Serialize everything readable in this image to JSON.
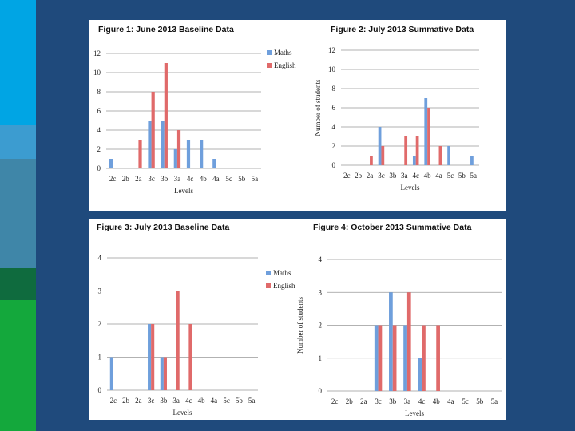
{
  "colors": {
    "background": "#1f4a7c",
    "panel": "#ffffff",
    "maths": "#6f9fdc",
    "english": "#e06a6a",
    "grid": "#999999",
    "stripes": [
      "#00a5e4",
      "#3c9cd0",
      "#3f86a8",
      "#0f6b3e",
      "#14a83c"
    ]
  },
  "chart_data": [
    {
      "type": "bar",
      "title": "Figure 1: June 2013 Baseline Data",
      "xlabel": "Levels",
      "ylabel": "",
      "ylim": [
        0,
        12
      ],
      "yticks": [
        0,
        2,
        4,
        6,
        8,
        10,
        12
      ],
      "grid": true,
      "legend": "right",
      "categories": [
        "2c",
        "2b",
        "2a",
        "3c",
        "3b",
        "3a",
        "4c",
        "4b",
        "4a",
        "5c",
        "5b",
        "5a"
      ],
      "series": [
        {
          "name": "Maths",
          "values": [
            1,
            0,
            0,
            5,
            5,
            2,
            3,
            3,
            1,
            0,
            0,
            0
          ]
        },
        {
          "name": "English",
          "values": [
            0,
            0,
            3,
            8,
            11,
            4,
            0,
            0,
            0,
            0,
            0,
            0
          ]
        }
      ]
    },
    {
      "type": "bar",
      "title": "Figure 2: July 2013 Summative Data",
      "xlabel": "Levels",
      "ylabel": "Number of students",
      "ylim": [
        0,
        12
      ],
      "yticks": [
        0,
        2,
        4,
        6,
        8,
        10,
        12
      ],
      "grid": true,
      "legend": "none",
      "categories": [
        "2c",
        "2b",
        "2a",
        "3c",
        "3b",
        "3a",
        "4c",
        "4b",
        "4a",
        "5c",
        "5b",
        "5a"
      ],
      "series": [
        {
          "name": "Maths",
          "values": [
            0,
            0,
            0,
            4,
            0,
            0,
            1,
            7,
            0,
            2,
            0,
            1
          ]
        },
        {
          "name": "English",
          "values": [
            0,
            0,
            1,
            2,
            0,
            3,
            3,
            6,
            2,
            0,
            0,
            0
          ]
        }
      ]
    },
    {
      "type": "bar",
      "title": "Figure 3: July 2013 Baseline Data",
      "xlabel": "Levels",
      "ylabel": "",
      "ylim": [
        0,
        4
      ],
      "yticks": [
        0,
        1,
        2,
        3,
        4
      ],
      "grid": true,
      "legend": "right",
      "categories": [
        "2c",
        "2b",
        "2a",
        "3c",
        "3b",
        "3a",
        "4c",
        "4b",
        "4a",
        "5c",
        "5b",
        "5a"
      ],
      "series": [
        {
          "name": "Maths",
          "values": [
            1,
            0,
            0,
            2,
            1,
            0,
            0,
            0,
            0,
            0,
            0,
            0
          ]
        },
        {
          "name": "English",
          "values": [
            0,
            0,
            0,
            2,
            1,
            3,
            2,
            0,
            0,
            0,
            0,
            0
          ]
        }
      ]
    },
    {
      "type": "bar",
      "title": "Figure 4: October 2013 Summative Data",
      "xlabel": "Levels",
      "ylabel": "Number of students",
      "ylim": [
        0,
        4
      ],
      "yticks": [
        0,
        1,
        2,
        3,
        4
      ],
      "grid": true,
      "legend": "none",
      "categories": [
        "2c",
        "2b",
        "2a",
        "3c",
        "3b",
        "3a",
        "4c",
        "4b",
        "4a",
        "5c",
        "5b",
        "5a"
      ],
      "series": [
        {
          "name": "Maths",
          "values": [
            0,
            0,
            0,
            2,
            3,
            2,
            1,
            0,
            0,
            0,
            0,
            0
          ]
        },
        {
          "name": "English",
          "values": [
            0,
            0,
            0,
            2,
            2,
            3,
            2,
            2,
            0,
            0,
            0,
            0
          ]
        }
      ]
    }
  ]
}
